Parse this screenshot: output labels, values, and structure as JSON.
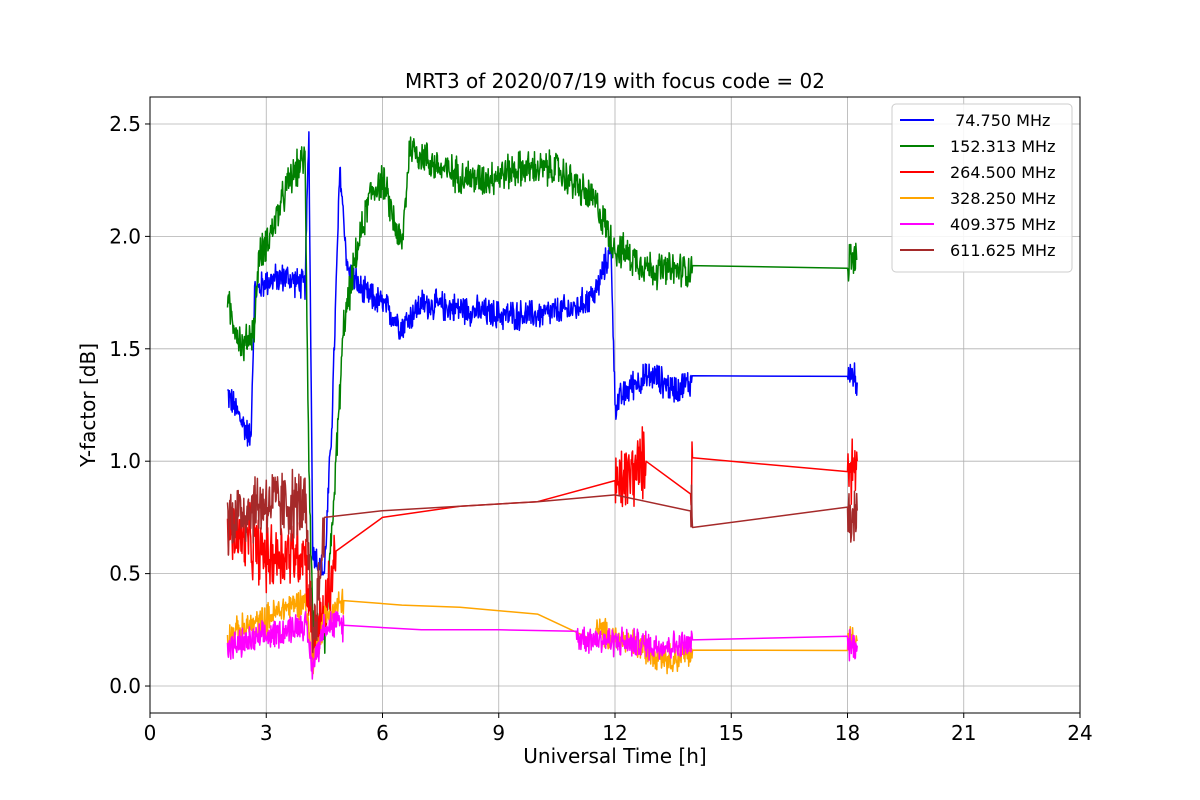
{
  "chart_data": {
    "type": "line",
    "title": "MRT3 of 2020/07/19 with focus code = 02",
    "xlabel": "Universal Time [h]",
    "ylabel": "Y-factor [dB]",
    "xlim": [
      0,
      24
    ],
    "ylim": [
      -0.12,
      2.62
    ],
    "x_ticks": [
      0,
      3,
      6,
      9,
      12,
      15,
      18,
      21,
      24
    ],
    "y_ticks": [
      0.0,
      0.5,
      1.0,
      1.5,
      2.0,
      2.5
    ],
    "x_tick_labels": [
      "0",
      "3",
      "6",
      "9",
      "12",
      "15",
      "18",
      "21",
      "24"
    ],
    "y_tick_labels": [
      "0.0",
      "0.5",
      "1.0",
      "1.5",
      "2.0",
      "2.5"
    ],
    "grid": true,
    "legend_position": "top-right",
    "series": [
      {
        "name": " 74.750 MHz",
        "color": "#0000ff",
        "noise": 0.05,
        "points": [
          [
            2.0,
            1.3
          ],
          [
            2.3,
            1.2
          ],
          [
            2.6,
            1.1
          ],
          [
            2.7,
            1.75
          ],
          [
            3.0,
            1.8
          ],
          [
            3.5,
            1.82
          ],
          [
            4.0,
            1.78
          ],
          [
            4.1,
            2.45
          ],
          [
            4.2,
            0.6
          ],
          [
            4.5,
            0.5
          ],
          [
            4.7,
            1.2
          ],
          [
            4.9,
            2.3
          ],
          [
            5.1,
            1.85
          ],
          [
            5.5,
            1.75
          ],
          [
            6.0,
            1.7
          ],
          [
            6.5,
            1.6
          ],
          [
            7.0,
            1.7
          ],
          [
            8.0,
            1.68
          ],
          [
            9.0,
            1.65
          ],
          [
            10.0,
            1.65
          ],
          [
            11.0,
            1.68
          ],
          [
            11.5,
            1.75
          ],
          [
            11.9,
            1.95
          ],
          [
            12.0,
            1.25
          ],
          [
            12.5,
            1.35
          ],
          [
            13.0,
            1.38
          ],
          [
            13.5,
            1.32
          ],
          [
            13.95,
            1.35
          ],
          [
            14.0,
            1.38
          ],
          [
            18.0,
            1.375
          ],
          [
            18.05,
            1.4
          ],
          [
            18.25,
            1.35
          ]
        ]
      },
      {
        "name": "152.313 MHz",
        "color": "#008000",
        "noise": 0.06,
        "points": [
          [
            2.0,
            1.7
          ],
          [
            2.4,
            1.5
          ],
          [
            2.7,
            1.6
          ],
          [
            2.8,
            1.9
          ],
          [
            3.2,
            2.05
          ],
          [
            3.6,
            2.25
          ],
          [
            4.0,
            2.35
          ],
          [
            4.1,
            1.0
          ],
          [
            4.2,
            0.3
          ],
          [
            4.5,
            0.2
          ],
          [
            4.7,
            0.7
          ],
          [
            5.0,
            1.6
          ],
          [
            5.3,
            1.9
          ],
          [
            5.7,
            2.2
          ],
          [
            6.0,
            2.25
          ],
          [
            6.5,
            1.95
          ],
          [
            6.7,
            2.4
          ],
          [
            7.5,
            2.3
          ],
          [
            8.5,
            2.25
          ],
          [
            9.5,
            2.3
          ],
          [
            10.5,
            2.3
          ],
          [
            11.5,
            2.15
          ],
          [
            12.0,
            1.95
          ],
          [
            12.5,
            1.9
          ],
          [
            13.0,
            1.85
          ],
          [
            13.95,
            1.85
          ],
          [
            14.0,
            1.87
          ],
          [
            18.0,
            1.865
          ],
          [
            18.05,
            1.9
          ],
          [
            18.25,
            1.9
          ]
        ]
      },
      {
        "name": "264.500 MHz",
        "color": "#ff0000",
        "noise": 0.12,
        "points": [
          [
            2.0,
            0.7
          ],
          [
            3.0,
            0.58
          ],
          [
            4.0,
            0.6
          ],
          [
            4.2,
            0.2
          ],
          [
            4.5,
            0.3
          ],
          [
            4.8,
            0.6
          ],
          [
            6.0,
            0.75
          ],
          [
            8.0,
            0.8
          ],
          [
            10.0,
            0.82
          ],
          [
            12.0,
            0.88
          ],
          [
            12.8,
            1.0
          ],
          [
            13.95,
            0.9
          ],
          [
            14.0,
            1.015
          ],
          [
            18.0,
            1.015
          ],
          [
            18.05,
            0.95
          ],
          [
            18.25,
            1.0
          ]
        ]
      },
      {
        "name": "328.250 MHz",
        "color": "#ffa500",
        "noise": 0.05,
        "points": [
          [
            2.0,
            0.22
          ],
          [
            3.0,
            0.3
          ],
          [
            3.5,
            0.35
          ],
          [
            4.0,
            0.38
          ],
          [
            4.2,
            0.1
          ],
          [
            4.5,
            0.3
          ],
          [
            5.0,
            0.38
          ],
          [
            6.5,
            0.36
          ],
          [
            8.0,
            0.35
          ],
          [
            10.0,
            0.32
          ],
          [
            11.5,
            0.25
          ],
          [
            12.5,
            0.18
          ],
          [
            13.5,
            0.12
          ],
          [
            13.95,
            0.15
          ],
          [
            14.0,
            0.16
          ],
          [
            18.0,
            0.165
          ],
          [
            18.05,
            0.22
          ],
          [
            18.25,
            0.2
          ]
        ]
      },
      {
        "name": "409.375 MHz",
        "color": "#ff00ff",
        "noise": 0.05,
        "points": [
          [
            2.0,
            0.17
          ],
          [
            3.0,
            0.22
          ],
          [
            4.0,
            0.28
          ],
          [
            4.2,
            0.08
          ],
          [
            4.5,
            0.28
          ],
          [
            5.0,
            0.27
          ],
          [
            7.0,
            0.25
          ],
          [
            9.0,
            0.25
          ],
          [
            11.0,
            0.22
          ],
          [
            12.0,
            0.2
          ],
          [
            13.0,
            0.18
          ],
          [
            13.95,
            0.18
          ],
          [
            14.0,
            0.205
          ],
          [
            18.0,
            0.205
          ],
          [
            18.05,
            0.18
          ],
          [
            18.25,
            0.18
          ]
        ]
      },
      {
        "name": "611.625 MHz",
        "color": "#a52a2a",
        "noise": 0.12,
        "points": [
          [
            2.0,
            0.75
          ],
          [
            3.0,
            0.82
          ],
          [
            4.0,
            0.8
          ],
          [
            4.2,
            0.2
          ],
          [
            4.4,
            0.5
          ],
          [
            4.5,
            0.75
          ],
          [
            6.0,
            0.78
          ],
          [
            8.0,
            0.8
          ],
          [
            10.0,
            0.82
          ],
          [
            12.0,
            0.85
          ],
          [
            13.95,
            0.85
          ],
          [
            14.0,
            0.705
          ],
          [
            18.0,
            0.7
          ],
          [
            18.05,
            0.75
          ],
          [
            18.25,
            0.78
          ]
        ]
      }
    ]
  }
}
